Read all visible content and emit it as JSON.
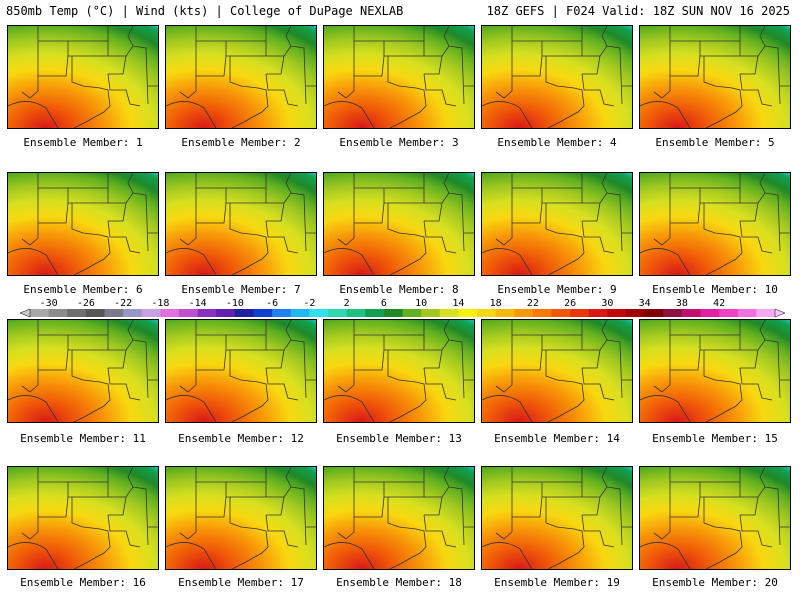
{
  "header": {
    "left": "850mb Temp (°C) | Wind (kts) | College of DuPage NEXLAB",
    "right": "18Z GEFS | F024 Valid: 18Z SUN NOV 16 2025"
  },
  "panels": [
    {
      "label": "Ensemble Member: 1"
    },
    {
      "label": "Ensemble Member: 2"
    },
    {
      "label": "Ensemble Member: 3"
    },
    {
      "label": "Ensemble Member: 4"
    },
    {
      "label": "Ensemble Member: 5"
    },
    {
      "label": "Ensemble Member: 6"
    },
    {
      "label": "Ensemble Member: 7"
    },
    {
      "label": "Ensemble Member: 8"
    },
    {
      "label": "Ensemble Member: 9"
    },
    {
      "label": "Ensemble Member: 10"
    },
    {
      "label": "Ensemble Member: 11"
    },
    {
      "label": "Ensemble Member: 12"
    },
    {
      "label": "Ensemble Member: 13"
    },
    {
      "label": "Ensemble Member: 14"
    },
    {
      "label": "Ensemble Member: 15"
    },
    {
      "label": "Ensemble Member: 16"
    },
    {
      "label": "Ensemble Member: 17"
    },
    {
      "label": "Ensemble Member: 18"
    },
    {
      "label": "Ensemble Member: 19"
    },
    {
      "label": "Ensemble Member: 20"
    }
  ],
  "colorbar": {
    "ticks": [
      "-30",
      "-26",
      "-22",
      "-18",
      "-14",
      "-10",
      "-6",
      "-2",
      "2",
      "6",
      "10",
      "14",
      "18",
      "22",
      "26",
      "30",
      "34",
      "38",
      "42"
    ],
    "colors": [
      "#a8a8a8",
      "#8c8c8c",
      "#6e6e6e",
      "#565656",
      "#7a7a8c",
      "#9898c8",
      "#c8a0e0",
      "#e070e0",
      "#c050d0",
      "#8a30c0",
      "#6020b0",
      "#2020a0",
      "#1040d0",
      "#2080f0",
      "#20b8f0",
      "#30e0f0",
      "#30d8b0",
      "#20c080",
      "#10a050",
      "#208828",
      "#60b020",
      "#a0c820",
      "#d8e020",
      "#f8f010",
      "#f8d810",
      "#f8b808",
      "#f89808",
      "#f87808",
      "#f05808",
      "#e83808",
      "#d81818",
      "#c00808",
      "#a00000",
      "#800000",
      "#901040",
      "#c01070",
      "#e020a0",
      "#f040c0",
      "#f070e0",
      "#f8a8f0"
    ]
  }
}
